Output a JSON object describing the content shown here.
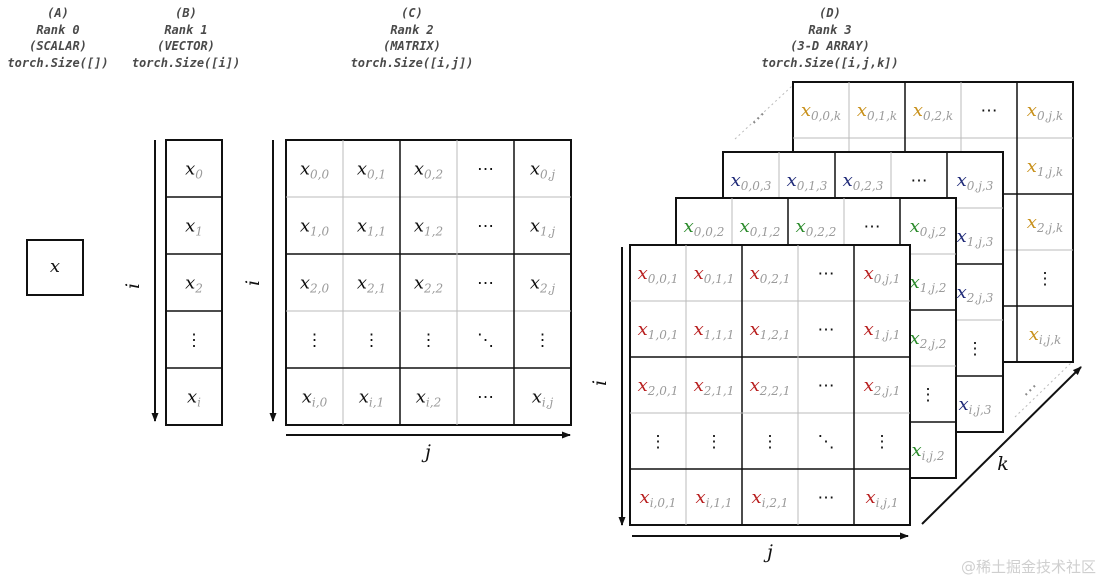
{
  "headers": {
    "a": {
      "letter": "(A)",
      "rank": "Rank 0",
      "kind": "(SCALAR)",
      "size": "torch.Size([])"
    },
    "b": {
      "letter": "(B)",
      "rank": "Rank 1",
      "kind": "(VECTOR)",
      "size": "torch.Size([i])"
    },
    "c": {
      "letter": "(C)",
      "rank": "Rank 2",
      "kind": "(MATRIX)",
      "size": "torch.Size([i,j])"
    },
    "d": {
      "letter": "(D)",
      "rank": "Rank 3",
      "kind": "(3-D ARRAY)",
      "size": "torch.Size([i,j,k])"
    }
  },
  "axes": {
    "i": "i",
    "j": "j",
    "k": "k"
  },
  "scalar": {
    "v": "x",
    "s": ""
  },
  "vector": [
    {
      "v": "x",
      "s": "0"
    },
    {
      "v": "x",
      "s": "1"
    },
    {
      "v": "x",
      "s": "2"
    },
    {
      "v": "⋮",
      "s": ""
    },
    {
      "v": "x",
      "s": "i"
    }
  ],
  "matrix": [
    [
      {
        "v": "x",
        "s": "0,0"
      },
      {
        "v": "x",
        "s": "0,1"
      },
      {
        "v": "x",
        "s": "0,2"
      },
      {
        "v": "⋯",
        "s": ""
      },
      {
        "v": "x",
        "s": "0,j"
      }
    ],
    [
      {
        "v": "x",
        "s": "1,0"
      },
      {
        "v": "x",
        "s": "1,1"
      },
      {
        "v": "x",
        "s": "1,2"
      },
      {
        "v": "⋯",
        "s": ""
      },
      {
        "v": "x",
        "s": "1,j"
      }
    ],
    [
      {
        "v": "x",
        "s": "2,0"
      },
      {
        "v": "x",
        "s": "2,1"
      },
      {
        "v": "x",
        "s": "2,2"
      },
      {
        "v": "⋯",
        "s": ""
      },
      {
        "v": "x",
        "s": "2,j"
      }
    ],
    [
      {
        "v": "⋮",
        "s": ""
      },
      {
        "v": "⋮",
        "s": ""
      },
      {
        "v": "⋮",
        "s": ""
      },
      {
        "v": "⋱",
        "s": ""
      },
      {
        "v": "⋮",
        "s": ""
      }
    ],
    [
      {
        "v": "x",
        "s": "i,0"
      },
      {
        "v": "x",
        "s": "i,1"
      },
      {
        "v": "x",
        "s": "i,2"
      },
      {
        "v": "⋯",
        "s": ""
      },
      {
        "v": "x",
        "s": "i,j"
      }
    ]
  ],
  "tensor": {
    "layer_k": {
      "color": "#c8901a",
      "top_row": [
        {
          "v": "x",
          "s": "0,0,k"
        },
        {
          "v": "x",
          "s": "0,1,k"
        },
        {
          "v": "x",
          "s": "0,2,k"
        },
        {
          "v": "⋯",
          "s": ""
        },
        {
          "v": "x",
          "s": "0,j,k"
        }
      ],
      "right_col": [
        {
          "v": "x",
          "s": "1,j,k"
        },
        {
          "v": "x",
          "s": "2,j,k"
        },
        {
          "v": "⋮",
          "s": ""
        },
        {
          "v": "x",
          "s": "i,j,k"
        }
      ]
    },
    "layer_3": {
      "color": "#1f2a78",
      "top_row": [
        {
          "v": "x",
          "s": "0,0,3"
        },
        {
          "v": "x",
          "s": "0,1,3"
        },
        {
          "v": "x",
          "s": "0,2,3"
        },
        {
          "v": "⋯",
          "s": ""
        },
        {
          "v": "x",
          "s": "0,j,3"
        }
      ],
      "right_col": [
        {
          "v": "x",
          "s": "1,j,3"
        },
        {
          "v": "x",
          "s": "2,j,3"
        },
        {
          "v": "⋮",
          "s": ""
        },
        {
          "v": "x",
          "s": "i,j,3"
        }
      ]
    },
    "layer_2": {
      "color": "#2a8a2a",
      "top_row": [
        {
          "v": "x",
          "s": "0,0,2"
        },
        {
          "v": "x",
          "s": "0,1,2"
        },
        {
          "v": "x",
          "s": "0,2,2"
        },
        {
          "v": "⋯",
          "s": ""
        },
        {
          "v": "x",
          "s": "0,j,2"
        }
      ],
      "right_col": [
        {
          "v": "x",
          "s": "1,j,2"
        },
        {
          "v": "x",
          "s": "2,j,2"
        },
        {
          "v": "⋮",
          "s": ""
        },
        {
          "v": "x",
          "s": "i,j,2"
        }
      ]
    },
    "layer_1": {
      "color": "#b81e1e",
      "rows": [
        [
          {
            "v": "x",
            "s": "0,0,1"
          },
          {
            "v": "x",
            "s": "0,1,1"
          },
          {
            "v": "x",
            "s": "0,2,1"
          },
          {
            "v": "⋯",
            "s": ""
          },
          {
            "v": "x",
            "s": "0,j,1"
          }
        ],
        [
          {
            "v": "x",
            "s": "1,0,1"
          },
          {
            "v": "x",
            "s": "1,1,1"
          },
          {
            "v": "x",
            "s": "1,2,1"
          },
          {
            "v": "⋯",
            "s": ""
          },
          {
            "v": "x",
            "s": "1,j,1"
          }
        ],
        [
          {
            "v": "x",
            "s": "2,0,1"
          },
          {
            "v": "x",
            "s": "2,1,1"
          },
          {
            "v": "x",
            "s": "2,2,1"
          },
          {
            "v": "⋯",
            "s": ""
          },
          {
            "v": "x",
            "s": "2,j,1"
          }
        ],
        [
          {
            "v": "⋮",
            "s": ""
          },
          {
            "v": "⋮",
            "s": ""
          },
          {
            "v": "⋮",
            "s": ""
          },
          {
            "v": "⋱",
            "s": ""
          },
          {
            "v": "⋮",
            "s": ""
          }
        ],
        [
          {
            "v": "x",
            "s": "i,0,1"
          },
          {
            "v": "x",
            "s": "i,1,1"
          },
          {
            "v": "x",
            "s": "i,2,1"
          },
          {
            "v": "⋯",
            "s": ""
          },
          {
            "v": "x",
            "s": "i,j,1"
          }
        ]
      ]
    }
  },
  "watermark": "@稀土掘金技术社区"
}
